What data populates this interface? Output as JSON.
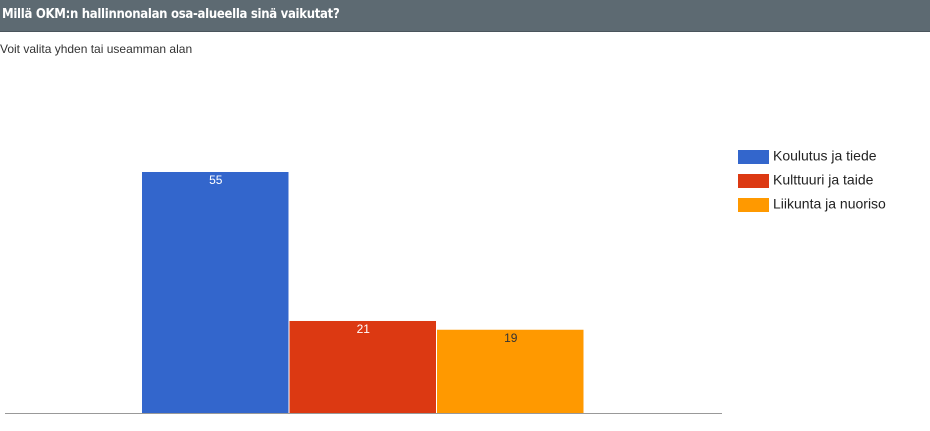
{
  "chart_data": {
    "type": "bar",
    "title": "Millä OKM:n hallinnonalan osa-alueella sinä vaikutat?",
    "subtitle": "Voit valita yhden tai useamman alan",
    "series": [
      {
        "name": "Koulutus ja tiede",
        "color": "#3366cc",
        "values": [
          55
        ]
      },
      {
        "name": "Kulttuuri ja taide",
        "color": "#dc3912",
        "values": [
          21
        ]
      },
      {
        "name": "Liikunta ja nuoriso",
        "color": "#ff9900",
        "values": [
          19
        ]
      }
    ],
    "legend": "right"
  }
}
